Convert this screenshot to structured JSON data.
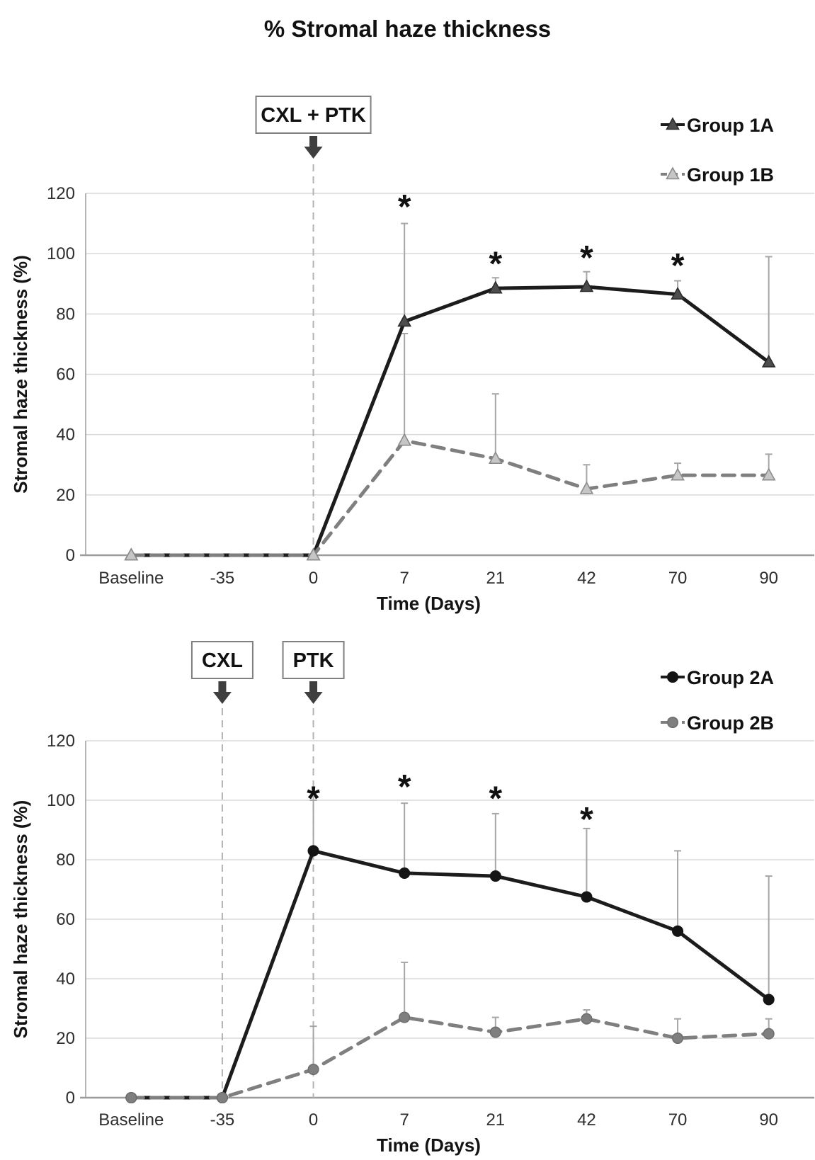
{
  "title": "% Stromal haze thickness",
  "colors": {
    "gridline": "#d9d9d9",
    "axis": "#9b9b9b",
    "error_bar": "#a6a6a6",
    "event_line": "#b3b3b3",
    "event_arrow": "#3f3f3f",
    "box_border": "#7f7f7f",
    "text": "#111111"
  },
  "chart_data": [
    {
      "type": "line",
      "xlabel": "Time (Days)",
      "ylabel": "Stromal haze thickness (%)",
      "ylim": [
        0,
        120
      ],
      "y_ticks": [
        0,
        20,
        40,
        60,
        80,
        100,
        120
      ],
      "categories": [
        "Baseline",
        "-35",
        "0",
        "7",
        "21",
        "42",
        "70",
        "90"
      ],
      "grid": "horizontal",
      "legend_position": "top-right",
      "events": [
        {
          "label": "CXL + PTK",
          "category": "0"
        }
      ],
      "series": [
        {
          "name": "Group 1A",
          "line_style": "solid",
          "marker": "triangle",
          "color": "#1c1c1c",
          "marker_fill": "#4d4d4d",
          "marker_stroke": "#2b2b2b",
          "values": [
            0,
            null,
            0,
            77.5,
            88.5,
            89,
            86.5,
            64
          ],
          "error_up_to": [
            null,
            null,
            null,
            110,
            92,
            94,
            91,
            99
          ]
        },
        {
          "name": "Group 1B",
          "line_style": "dashed",
          "marker": "triangle",
          "color": "#7f7f7f",
          "marker_fill": "#c6c6c6",
          "marker_stroke": "#8c8c8c",
          "values": [
            0,
            null,
            0,
            38,
            32,
            22,
            26.5,
            26.5
          ],
          "error_up_to": [
            null,
            null,
            null,
            73.5,
            53.5,
            30,
            30.5,
            33.5
          ]
        }
      ],
      "significance": [
        {
          "symbol": "*",
          "category": "7",
          "at_value": 117
        },
        {
          "symbol": "*",
          "category": "21",
          "at_value": 98
        },
        {
          "symbol": "*",
          "category": "42",
          "at_value": 100
        },
        {
          "symbol": "*",
          "category": "70",
          "at_value": 97.5
        }
      ]
    },
    {
      "type": "line",
      "xlabel": "Time (Days)",
      "ylabel": "Stromal haze thickness (%)",
      "ylim": [
        0,
        120
      ],
      "y_ticks": [
        0,
        20,
        40,
        60,
        80,
        100,
        120
      ],
      "categories": [
        "Baseline",
        "-35",
        "0",
        "7",
        "21",
        "42",
        "70",
        "90"
      ],
      "grid": "horizontal",
      "legend_position": "top-right",
      "events": [
        {
          "label": "CXL",
          "category": "-35"
        },
        {
          "label": "PTK",
          "category": "0"
        }
      ],
      "series": [
        {
          "name": "Group 2A",
          "line_style": "solid",
          "marker": "circle",
          "color": "#1c1c1c",
          "marker_fill": "#141414",
          "marker_stroke": "#141414",
          "values": [
            0,
            0,
            83,
            75.5,
            74.5,
            67.5,
            56,
            33
          ],
          "error_up_to": [
            null,
            null,
            100,
            99,
            95.5,
            90.5,
            83,
            74.5
          ]
        },
        {
          "name": "Group 2B",
          "line_style": "dashed",
          "marker": "circle",
          "color": "#7f7f7f",
          "marker_fill": "#7f7f7f",
          "marker_stroke": "#6e6e6e",
          "values": [
            0,
            0,
            9.5,
            27,
            22,
            26.5,
            20,
            21.5
          ],
          "error_up_to": [
            null,
            null,
            24,
            45.5,
            27,
            29.5,
            26.5,
            26.5
          ]
        }
      ],
      "significance": [
        {
          "symbol": "*",
          "category": "0",
          "at_value": 102
        },
        {
          "symbol": "*",
          "category": "7",
          "at_value": 106
        },
        {
          "symbol": "*",
          "category": "21",
          "at_value": 102
        },
        {
          "symbol": "*",
          "category": "42",
          "at_value": 95
        }
      ]
    }
  ]
}
